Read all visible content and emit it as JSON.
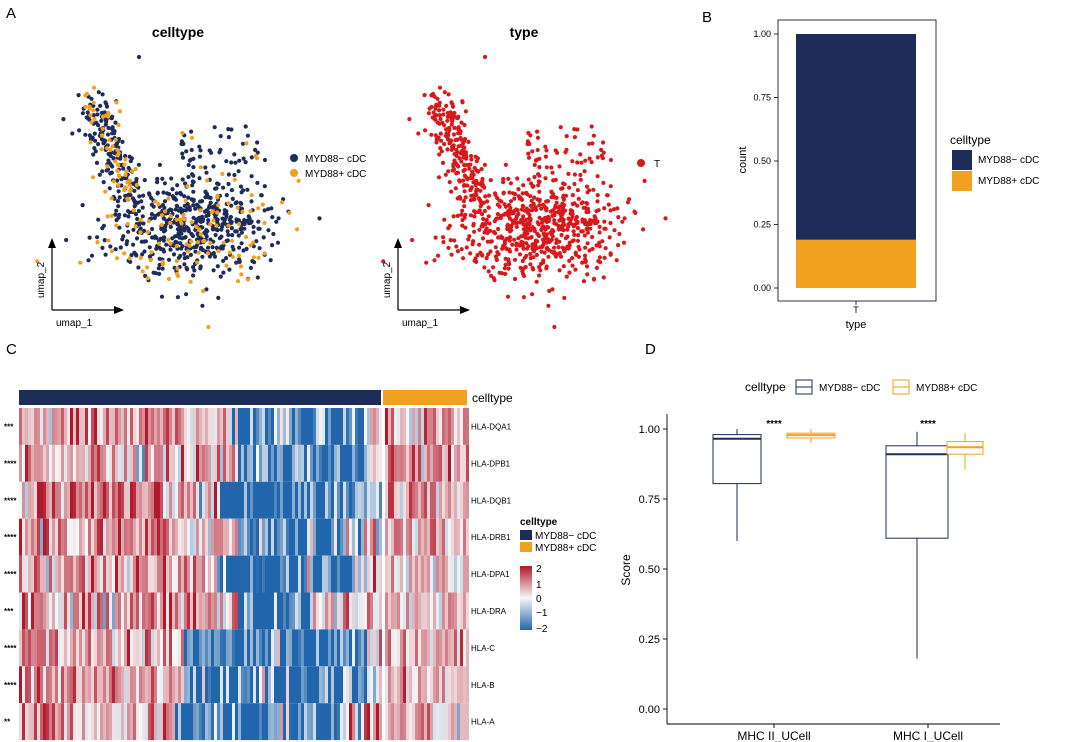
{
  "panel_labels": [
    "A",
    "B",
    "C",
    "D"
  ],
  "colors": {
    "neg": "#1e2c5a",
    "pos": "#f2a11e",
    "type_T": "#d7191c",
    "heat_high": "#b2182b",
    "heat_mid": "#f7f7f7",
    "heat_low": "#2166ac",
    "axis": "#000000",
    "grid": "#ebebeb"
  },
  "chart_data": [
    {
      "id": "umap-celltype",
      "type": "scatter",
      "title": "celltype",
      "xlabel": "umap_1",
      "ylabel": "umap_2",
      "legend": [
        {
          "label": "MYD88− cDC",
          "color": "#1e2c5a"
        },
        {
          "label": "MYD88+ cDC",
          "color": "#f2a11e"
        }
      ],
      "n_points_approx": 900
    },
    {
      "id": "umap-type",
      "type": "scatter",
      "title": "type",
      "xlabel": "umap_1",
      "ylabel": "umap_2",
      "legend": [
        {
          "label": "T",
          "color": "#d7191c"
        }
      ],
      "n_points_approx": 900
    },
    {
      "id": "stacked-bar",
      "type": "bar",
      "stacked": true,
      "categories": [
        "T"
      ],
      "series": [
        {
          "name": "MYD88− cDC",
          "values": [
            0.81
          ],
          "color": "#1e2c5a"
        },
        {
          "name": "MYD88+ cDC",
          "values": [
            0.19
          ],
          "color": "#f2a11e"
        }
      ],
      "xlabel": "type",
      "ylabel": "count",
      "ylim": [
        0,
        1
      ],
      "yticks": [
        "0.00",
        "0.25",
        "0.50",
        "0.75",
        "1.00"
      ],
      "legend_title": "celltype",
      "legend": [
        {
          "label": "MYD88− cDC",
          "color": "#1e2c5a"
        },
        {
          "label": "MYD88+ cDC",
          "color": "#f2a11e"
        }
      ]
    },
    {
      "id": "heatmap",
      "type": "heatmap",
      "annotation_title": "celltype",
      "annotation_groups": [
        {
          "label": "MYD88− cDC",
          "fraction": 0.81,
          "color": "#1e2c5a"
        },
        {
          "label": "MYD88+ cDC",
          "fraction": 0.19,
          "color": "#f2a11e"
        }
      ],
      "rows": [
        "HLA-DQA1",
        "HLA-DPB1",
        "HLA-DQB1",
        "HLA-DRB1",
        "HLA-DPA1",
        "HLA-DRA",
        "HLA-C",
        "HLA-B",
        "HLA-A"
      ],
      "row_significance": [
        "***",
        "****",
        "****",
        "****",
        "****",
        "***",
        "****",
        "****",
        "**"
      ],
      "legend_title": "celltype",
      "legend": [
        {
          "label": "MYD88− cDC",
          "color": "#1e2c5a"
        },
        {
          "label": "MYD88+ cDC",
          "color": "#f2a11e"
        }
      ],
      "color_scale": {
        "min": -2,
        "max": 2,
        "ticks": [
          "2",
          "1",
          "0",
          "−1",
          "−2"
        ]
      }
    },
    {
      "id": "boxplot",
      "type": "box",
      "legend_title": "celltype",
      "legend": [
        {
          "label": "MYD88− cDC",
          "color": "#1e2c5a"
        },
        {
          "label": "MYD88+ cDC",
          "color": "#f2a11e"
        }
      ],
      "categories": [
        "MHC II_UCell",
        "MHC I_UCell"
      ],
      "ylabel": "Score",
      "ylim": [
        0,
        1
      ],
      "yticks": [
        "0.00",
        "0.25",
        "0.50",
        "0.75",
        "1.00"
      ],
      "significance": [
        "****",
        "****"
      ],
      "series": [
        {
          "name": "MYD88− cDC",
          "color": "#1e2c5a",
          "boxes": [
            {
              "min": 0.6,
              "q1": 0.805,
              "median": 0.965,
              "q3": 0.98,
              "max": 1.0
            },
            {
              "min": 0.18,
              "q1": 0.61,
              "median": 0.91,
              "q3": 0.94,
              "max": 0.99
            }
          ]
        },
        {
          "name": "MYD88+ cDC",
          "color": "#f2a11e",
          "boxes": [
            {
              "min": 0.95,
              "q1": 0.968,
              "median": 0.978,
              "q3": 0.985,
              "max": 1.0
            },
            {
              "min": 0.855,
              "q1": 0.91,
              "median": 0.935,
              "q3": 0.955,
              "max": 0.985
            }
          ]
        }
      ]
    }
  ]
}
